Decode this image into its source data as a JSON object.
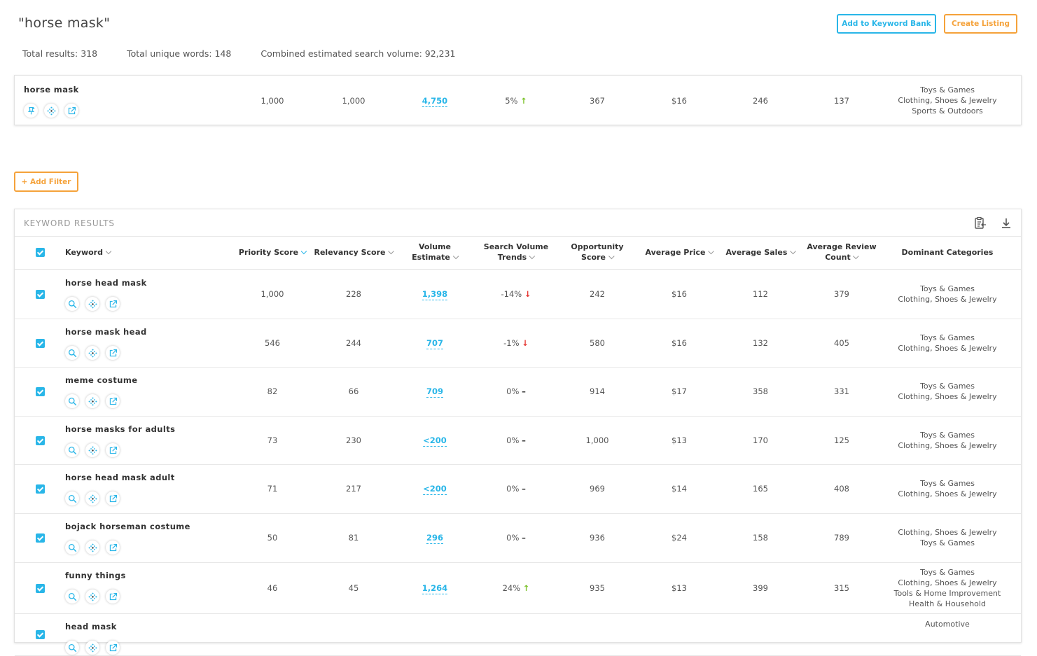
{
  "header": {
    "title": "\"horse mask\"",
    "total_results": "Total results: 318",
    "total_unique_words": "Total unique words: 148",
    "combined_volume": "Combined estimated search volume: 92,231",
    "add_to_keyword_bank": "Add to Keyword Bank",
    "create_listing": "Create Listing"
  },
  "summary": {
    "keyword": "horse mask",
    "priority_score": "1,000",
    "relevancy_score": "1,000",
    "volume_estimate": "4,750",
    "trend": "5%",
    "trend_direction": "up",
    "opportunity_score": "367",
    "average_price": "$16",
    "average_sales": "246",
    "average_review_count": "137",
    "categories": [
      "Toys & Games",
      "Clothing, Shoes & Jewelry",
      "Sports & Outdoors"
    ]
  },
  "filters": {
    "add_filter_label": "+ Add Filter"
  },
  "results": {
    "title": "KEYWORD RESULTS",
    "columns": {
      "keyword": "Keyword",
      "priority_score": "Priority Score",
      "relevancy_score": "Relevancy Score",
      "volume_estimate_1": "Volume",
      "volume_estimate_2": "Estimate",
      "trends_1": "Search Volume",
      "trends_2": "Trends",
      "opportunity_1": "Opportunity",
      "opportunity_2": "Score",
      "average_price": "Average Price",
      "average_sales": "Average Sales",
      "review_1": "Average Review",
      "review_2": "Count",
      "dominant_categories": "Dominant Categories"
    },
    "rows": [
      {
        "keyword": "horse head mask",
        "priority": "1,000",
        "relevancy": "228",
        "volume": "1,398",
        "trend": "-14%",
        "dir": "down",
        "opportunity": "242",
        "price": "$16",
        "sales": "112",
        "reviews": "379",
        "categories": [
          "Toys & Games",
          "Clothing, Shoes & Jewelry"
        ]
      },
      {
        "keyword": "horse mask head",
        "priority": "546",
        "relevancy": "244",
        "volume": "707",
        "trend": "-1%",
        "dir": "down",
        "opportunity": "580",
        "price": "$16",
        "sales": "132",
        "reviews": "405",
        "categories": [
          "Toys & Games",
          "Clothing, Shoes & Jewelry"
        ]
      },
      {
        "keyword": "meme costume",
        "priority": "82",
        "relevancy": "66",
        "volume": "709",
        "trend": "0%",
        "dir": "flat",
        "opportunity": "914",
        "price": "$17",
        "sales": "358",
        "reviews": "331",
        "categories": [
          "Toys & Games",
          "Clothing, Shoes & Jewelry"
        ]
      },
      {
        "keyword": "horse masks for adults",
        "priority": "73",
        "relevancy": "230",
        "volume": "<200",
        "trend": "0%",
        "dir": "flat",
        "opportunity": "1,000",
        "price": "$13",
        "sales": "170",
        "reviews": "125",
        "categories": [
          "Toys & Games",
          "Clothing, Shoes & Jewelry"
        ]
      },
      {
        "keyword": "horse head mask adult",
        "priority": "71",
        "relevancy": "217",
        "volume": "<200",
        "trend": "0%",
        "dir": "flat",
        "opportunity": "969",
        "price": "$14",
        "sales": "165",
        "reviews": "408",
        "categories": [
          "Toys & Games",
          "Clothing, Shoes & Jewelry"
        ]
      },
      {
        "keyword": "bojack horseman costume",
        "priority": "50",
        "relevancy": "81",
        "volume": "296",
        "trend": "0%",
        "dir": "flat",
        "opportunity": "936",
        "price": "$24",
        "sales": "158",
        "reviews": "789",
        "categories": [
          "Clothing, Shoes & Jewelry",
          "Toys & Games"
        ]
      },
      {
        "keyword": "funny things",
        "priority": "46",
        "relevancy": "45",
        "volume": "1,264",
        "trend": "24%",
        "dir": "up",
        "opportunity": "935",
        "price": "$13",
        "sales": "399",
        "reviews": "315",
        "categories": [
          "Toys & Games",
          "Clothing, Shoes & Jewelry",
          "Tools & Home Improvement",
          "Health & Household"
        ]
      },
      {
        "keyword": "head mask",
        "priority": "",
        "relevancy": "",
        "volume": "",
        "trend": "",
        "dir": "",
        "opportunity": "",
        "price": "",
        "sales": "",
        "reviews": "",
        "categories": [
          "Automotive"
        ]
      }
    ]
  },
  "icons": {
    "pin": "pin-icon",
    "search": "search-icon",
    "network": "network-icon",
    "external": "external-link-icon",
    "clipboard": "clipboard-icon",
    "download": "download-icon"
  }
}
